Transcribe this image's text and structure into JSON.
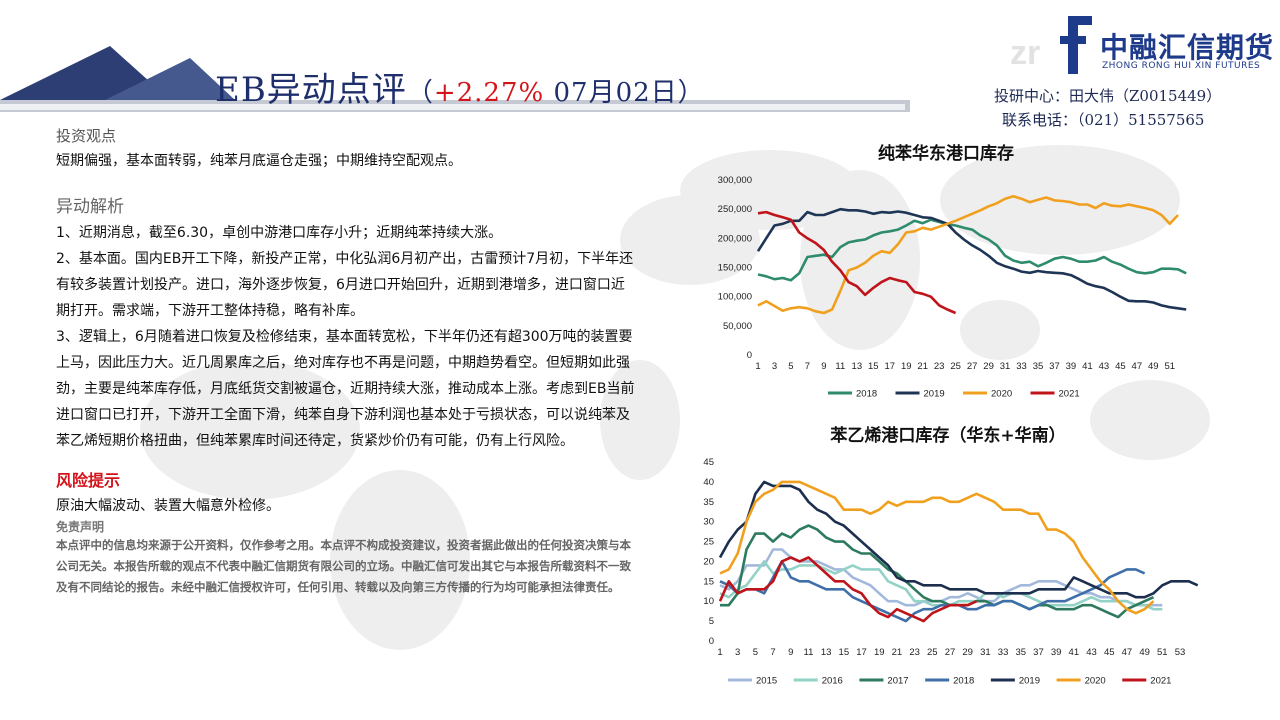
{
  "header": {
    "title_main": "EB异动点评",
    "title_open": "（",
    "title_pct": "+2.27%",
    "title_date": " 07月02日）"
  },
  "logo": {
    "name_cn": "中融汇信期货",
    "name_en": "ZHONG RONG HUI XIN FUTURES"
  },
  "contact": {
    "line1": "投研中心：田大伟（Z0015449）",
    "line2": "联系电话：（021）51557565"
  },
  "view": {
    "heading": "投资观点",
    "text": "短期偏强，基本面转弱，纯苯月底逼仓走强；中期维持空配观点。"
  },
  "analysis": {
    "heading": "异动解析",
    "p1": "1、近期消息，截至6.30，卓创中游港口库存小升；近期纯苯持续大涨。",
    "p2": "2、基本面。国内EB开工下降，新投产正常，中化弘润6月初产出，古雷预计7月初，下半年还有较多装置计划投产。进口，海外逐步恢复，6月进口开始回升，近期到港增多，进口窗口近期打开。需求端，下游开工整体持稳，略有补库。",
    "p3": "3、逻辑上，6月随着进口恢复及检修结束，基本面转宽松，下半年仍还有超300万吨的装置要上马，因此压力大。近几周累库之后，绝对库存也不再是问题，中期趋势看空。但短期如此强劲，主要是纯苯库存低，月底纸货交割被逼仓，近期持续大涨，推动成本上涨。考虑到EB当前进口窗口已打开，下游开工全面下滑，纯苯自身下游利润也基本处于亏损状态，可以说纯苯及苯乙烯短期价格扭曲，但纯苯累库时间还待定，货紧炒价仍有可能，仍有上行风险。"
  },
  "risk": {
    "heading": "风险提示",
    "text": "原油大幅波动、装置大幅意外检修。"
  },
  "disclaimer": {
    "heading": "免责声明",
    "text": "本点评中的信息均来源于公开资料，仅作参考之用。本点评不构成投资建议，投资者据此做出的任何投资决策与本公司无关。本报告所载的观点不代表中融汇信期货有限公司的立场。中融汇信可发出其它与本报告所载资料不一致及有不同结论的报告。未经中融汇信授权许可，任何引用、转载以及向第三方传播的行为均可能承担法律责任。"
  },
  "chart_data": [
    {
      "type": "line",
      "title": "纯苯华东港口库存",
      "xlabel": "",
      "ylabel": "",
      "ylim": [
        0,
        300000
      ],
      "yticks": [
        0,
        50000,
        100000,
        150000,
        200000,
        250000,
        300000
      ],
      "ytick_labels": [
        "0",
        "50,000",
        "100,000",
        "150,000",
        "200,000",
        "250,000",
        "300,000"
      ],
      "xticks": [
        1,
        3,
        5,
        7,
        9,
        11,
        13,
        15,
        17,
        19,
        21,
        23,
        25,
        27,
        29,
        31,
        33,
        35,
        37,
        39,
        41,
        43,
        45,
        47,
        49,
        51
      ],
      "grid": false,
      "legend": "bottom",
      "series": [
        {
          "name": "2018",
          "color": "#2e8b6e",
          "values": [
            138000,
            135000,
            130000,
            132000,
            128000,
            140000,
            168000,
            170000,
            172000,
            168000,
            185000,
            193000,
            196000,
            198000,
            205000,
            210000,
            212000,
            215000,
            222000,
            230000,
            226000,
            232000,
            228000,
            224000,
            222000,
            218000,
            215000,
            205000,
            198000,
            188000,
            170000,
            162000,
            158000,
            160000,
            152000,
            158000,
            165000,
            168000,
            165000,
            160000,
            160000,
            162000,
            168000,
            160000,
            155000,
            148000,
            142000,
            140000,
            142000,
            148000,
            148000,
            147000,
            140000
          ]
        },
        {
          "name": "2019",
          "color": "#1f3555",
          "values": [
            178000,
            200000,
            222000,
            225000,
            230000,
            230000,
            245000,
            240000,
            240000,
            245000,
            250000,
            248000,
            248000,
            246000,
            242000,
            245000,
            244000,
            246000,
            244000,
            240000,
            236000,
            235000,
            230000,
            225000,
            210000,
            198000,
            188000,
            180000,
            170000,
            158000,
            152000,
            148000,
            143000,
            141000,
            144000,
            142000,
            141000,
            140000,
            137000,
            130000,
            122000,
            118000,
            115000,
            108000,
            100000,
            93000,
            92000,
            92000,
            90000,
            85000,
            82000,
            80000,
            78000
          ]
        },
        {
          "name": "2020",
          "color": "#f0a01e",
          "values": [
            85000,
            92000,
            84000,
            76000,
            80000,
            82000,
            80000,
            75000,
            72000,
            78000,
            110000,
            145000,
            150000,
            158000,
            170000,
            178000,
            175000,
            190000,
            210000,
            212000,
            218000,
            215000,
            220000,
            225000,
            230000,
            236000,
            242000,
            248000,
            255000,
            260000,
            268000,
            272000,
            268000,
            262000,
            266000,
            270000,
            265000,
            264000,
            262000,
            258000,
            258000,
            252000,
            260000,
            256000,
            255000,
            258000,
            255000,
            252000,
            248000,
            240000,
            225000,
            240000
          ]
        },
        {
          "name": "2021",
          "color": "#c0141b",
          "values": [
            243000,
            245000,
            240000,
            236000,
            232000,
            210000,
            200000,
            192000,
            180000,
            160000,
            145000,
            125000,
            118000,
            103000,
            115000,
            125000,
            132000,
            128000,
            125000,
            108000,
            105000,
            100000,
            85000,
            78000,
            72000
          ]
        }
      ]
    },
    {
      "type": "line",
      "title": "苯乙烯港口库存（华东+华南）",
      "xlabel": "",
      "ylabel": "",
      "ylim": [
        0,
        45
      ],
      "yticks": [
        0,
        5,
        10,
        15,
        20,
        25,
        30,
        35,
        40,
        45
      ],
      "xticks": [
        1,
        3,
        5,
        7,
        9,
        11,
        13,
        15,
        17,
        19,
        21,
        23,
        25,
        27,
        29,
        31,
        33,
        35,
        37,
        39,
        41,
        43,
        45,
        47,
        49,
        51,
        53
      ],
      "grid": false,
      "legend": "bottom",
      "series": [
        {
          "name": "2015",
          "color": "#a3b9db",
          "values": [
            14,
            13,
            15,
            19,
            19,
            19,
            23,
            23,
            21,
            20,
            20,
            20,
            19,
            18,
            18,
            16,
            15,
            14,
            12,
            10,
            10,
            9,
            9,
            10,
            10,
            10,
            11,
            11,
            12,
            11,
            10,
            10,
            12,
            13,
            14,
            14,
            15,
            15,
            15,
            14,
            13,
            12,
            12,
            11,
            11,
            10,
            10,
            9,
            9,
            9,
            9
          ]
        },
        {
          "name": "2016",
          "color": "#93d2c7",
          "values": [
            12,
            11,
            13,
            14,
            17,
            20,
            17,
            18,
            18,
            19,
            19,
            19,
            18,
            17,
            18,
            19,
            18,
            18,
            18,
            15,
            14,
            13,
            10,
            10,
            9,
            9,
            9,
            10,
            10,
            10,
            12,
            12,
            11,
            12,
            12,
            11,
            10,
            9,
            9,
            9,
            9,
            10,
            11,
            10,
            10,
            10,
            10,
            9,
            9,
            8,
            8
          ]
        },
        {
          "name": "2017",
          "color": "#2d7a5e",
          "values": [
            9,
            9,
            12,
            23,
            27,
            27,
            25,
            27,
            26,
            28,
            29,
            28,
            26,
            25,
            25,
            23,
            22,
            22,
            20,
            18,
            17,
            15,
            13,
            11,
            10,
            10,
            9,
            9,
            9,
            10,
            10,
            9,
            10,
            10,
            9,
            8,
            9,
            9,
            8,
            8,
            8,
            9,
            9,
            8,
            7,
            6,
            8,
            9,
            10,
            11
          ]
        },
        {
          "name": "2018",
          "color": "#3f6fa8",
          "values": [
            15,
            14,
            12,
            13,
            13,
            12,
            16,
            20,
            16,
            15,
            15,
            14,
            13,
            13,
            13,
            11,
            10,
            9,
            8,
            7,
            6,
            5,
            7,
            8,
            8,
            9,
            9,
            9,
            8,
            8,
            9,
            9,
            10,
            10,
            9,
            8,
            9,
            10,
            10,
            10,
            11,
            12,
            13,
            14,
            16,
            17,
            18,
            18,
            17
          ]
        },
        {
          "name": "2019",
          "color": "#1c2f4e",
          "values": [
            21,
            25,
            28,
            30,
            37,
            40,
            39,
            39,
            39,
            38,
            35,
            33,
            32,
            30,
            29,
            27,
            25,
            23,
            21,
            19,
            16,
            15,
            15,
            14,
            14,
            14,
            13,
            13,
            13,
            13,
            12,
            12,
            12,
            12,
            12,
            12,
            13,
            13,
            13,
            13,
            16,
            15,
            14,
            13,
            12,
            12,
            12,
            11,
            11,
            12,
            14,
            15,
            15,
            15,
            14
          ]
        },
        {
          "name": "2020",
          "color": "#f0a01e",
          "values": [
            17,
            18,
            22,
            30,
            35,
            37,
            38,
            40,
            40,
            40,
            39,
            38,
            37,
            36,
            33,
            33,
            33,
            32,
            33,
            35,
            34,
            35,
            35,
            35,
            36,
            36,
            35,
            35,
            36,
            37,
            36,
            35,
            33,
            33,
            33,
            32,
            32,
            28,
            28,
            27,
            25,
            21,
            18,
            15,
            13,
            10,
            8,
            7,
            8,
            10
          ]
        },
        {
          "name": "2021",
          "color": "#c0141b",
          "values": [
            10,
            15,
            12,
            13,
            13,
            13,
            15,
            20,
            21,
            20,
            21,
            19,
            17,
            15,
            15,
            13,
            12,
            9,
            7,
            6,
            8,
            7,
            6,
            5,
            7,
            8,
            9,
            9,
            9,
            10
          ]
        }
      ]
    }
  ]
}
